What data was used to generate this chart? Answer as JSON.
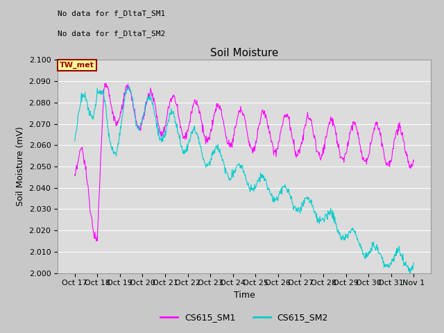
{
  "title": "Soil Moisture",
  "xlabel": "Time",
  "ylabel": "Soil Moisture (mV)",
  "ylim": [
    2.0,
    2.1
  ],
  "yticks": [
    2.0,
    2.01,
    2.02,
    2.03,
    2.04,
    2.05,
    2.06,
    2.07,
    2.08,
    2.09,
    2.1
  ],
  "xtick_labels": [
    "Oct 17",
    "Oct 18",
    "Oct 19",
    "Oct 20",
    "Oct 21",
    "Oct 22",
    "Oct 23",
    "Oct 24",
    "Oct 25",
    "Oct 26",
    "Oct 27",
    "Oct 28",
    "Oct 29",
    "Oct 30",
    "Oct 31",
    "Nov 1"
  ],
  "color_sm1": "#FF00FF",
  "color_sm2": "#00CCCC",
  "legend_labels": [
    "CS615_SM1",
    "CS615_SM2"
  ],
  "annotation_lines": [
    "No data for f_DltaT_SM1",
    "No data for f_DltaT_SM2"
  ],
  "box_label": "TW_met",
  "box_facecolor": "#FFFF99",
  "box_edgecolor": "#990000",
  "box_textcolor": "#990000",
  "plot_bg_color": "#DCDCDC",
  "fig_bg_color": "#C8C8C8",
  "grid_color": "#FFFFFF",
  "title_fontsize": 11,
  "label_fontsize": 9,
  "tick_fontsize": 8,
  "annot_fontsize": 8
}
